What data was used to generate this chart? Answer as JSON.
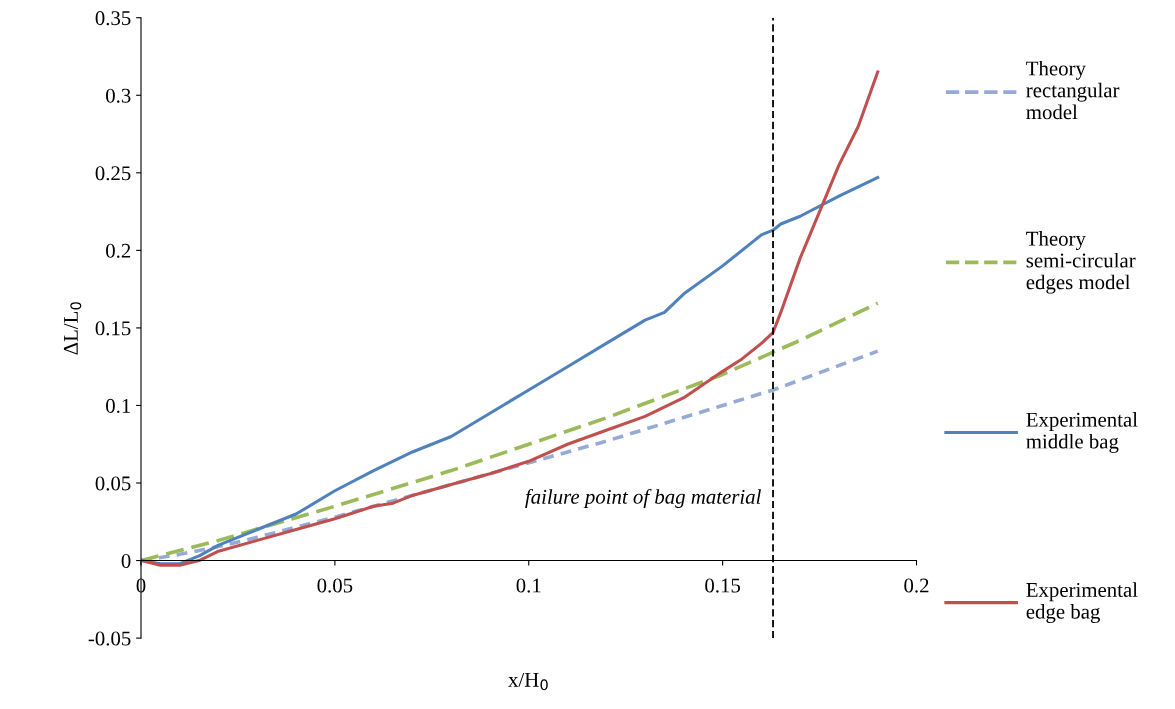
{
  "chart_data": {
    "type": "line",
    "xlabel": "x/H$_{0}$",
    "ylabel": "ΔL/L$_{0}$",
    "xlim": [
      0,
      0.2
    ],
    "ylim": [
      -0.05,
      0.35
    ],
    "xticks": [
      0,
      0.05,
      0.1,
      0.15,
      0.2
    ],
    "yticks": [
      -0.05,
      0,
      0.05,
      0.1,
      0.15,
      0.2,
      0.25,
      0.3,
      0.35
    ],
    "grid": false,
    "legend": "right",
    "series": [
      {
        "name": "Theory rectangular model",
        "color": "#95abd6",
        "line_style": "dashed",
        "x": [
          0,
          0.01,
          0.02,
          0.03,
          0.05,
          0.07,
          0.1,
          0.12,
          0.15,
          0.163,
          0.19
        ],
        "values": [
          0,
          0.004,
          0.009,
          0.015,
          0.028,
          0.042,
          0.063,
          0.077,
          0.1,
          0.11,
          0.135
        ]
      },
      {
        "name": "Theory semi-circular edges model",
        "color": "#9bbb59",
        "line_style": "dashed",
        "x": [
          0,
          0.02,
          0.05,
          0.08,
          0.1,
          0.12,
          0.15,
          0.17,
          0.19
        ],
        "values": [
          0,
          0.013,
          0.035,
          0.058,
          0.075,
          0.092,
          0.12,
          0.142,
          0.166
        ]
      },
      {
        "name": "Experimental middle bag",
        "color": "#4f81bd",
        "line_style": "solid",
        "x": [
          0,
          0.005,
          0.01,
          0.015,
          0.02,
          0.03,
          0.04,
          0.05,
          0.06,
          0.07,
          0.08,
          0.09,
          0.1,
          0.11,
          0.12,
          0.13,
          0.135,
          0.14,
          0.15,
          0.16,
          0.163,
          0.165,
          0.17,
          0.18,
          0.19
        ],
        "values": [
          0,
          -0.002,
          -0.002,
          0.003,
          0.01,
          0.02,
          0.03,
          0.045,
          0.058,
          0.07,
          0.08,
          0.095,
          0.11,
          0.125,
          0.14,
          0.155,
          0.16,
          0.172,
          0.19,
          0.21,
          0.213,
          0.217,
          0.222,
          0.235,
          0.247
        ]
      },
      {
        "name": "Experimental edge bag",
        "color": "#c0504d",
        "line_style": "solid",
        "x": [
          0,
          0.005,
          0.01,
          0.015,
          0.02,
          0.03,
          0.04,
          0.05,
          0.06,
          0.065,
          0.07,
          0.08,
          0.09,
          0.1,
          0.11,
          0.12,
          0.13,
          0.14,
          0.15,
          0.155,
          0.16,
          0.163,
          0.165,
          0.17,
          0.175,
          0.18,
          0.185,
          0.19
        ],
        "values": [
          0,
          -0.003,
          -0.003,
          0,
          0.006,
          0.013,
          0.02,
          0.027,
          0.035,
          0.037,
          0.042,
          0.049,
          0.056,
          0.064,
          0.075,
          0.084,
          0.093,
          0.105,
          0.122,
          0.13,
          0.14,
          0.147,
          0.16,
          0.195,
          0.225,
          0.255,
          0.28,
          0.315
        ]
      }
    ],
    "ref_lines": [
      {
        "axis": "x",
        "value": 0.163,
        "color": "#000000",
        "line_style": "dashed"
      }
    ],
    "annotations": [
      {
        "text": "failure point of bag material",
        "x": 0.163,
        "y": 0.04
      }
    ]
  }
}
